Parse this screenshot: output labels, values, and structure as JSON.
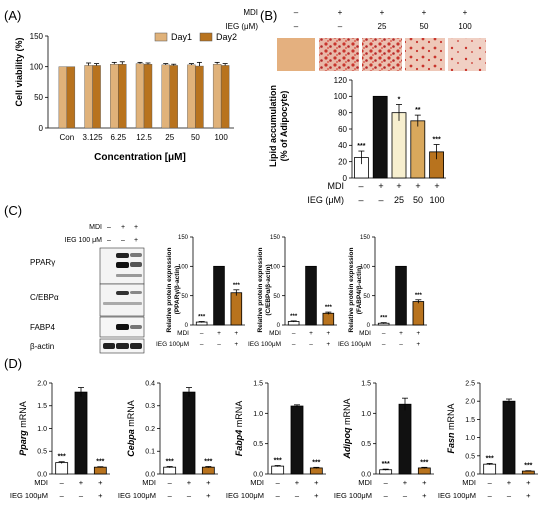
{
  "panel_labels": [
    "(A)",
    "(B)",
    "(C)",
    "(D)"
  ],
  "colors": {
    "day1": "#e0b27a",
    "day2": "#b8731e",
    "black": "#111111",
    "white": "#ffffff",
    "ieg25": "#f7efcf",
    "ieg50": "#d9a85c",
    "ieg100": "#b8731e",
    "stain": "#c8352d",
    "stain_bg": "#e4b07f"
  },
  "panelA": {
    "label": "(A)",
    "ylabel": "Cell viability (%)",
    "xlabel": "Concentration [μM]",
    "legend": [
      "Day1",
      "Day2"
    ]
  },
  "panelB": {
    "label": "(B)",
    "header_rows": [
      {
        "label": "MDI",
        "values": [
          "–",
          "+",
          "+",
          "+",
          "+"
        ]
      },
      {
        "label": "IEG (μM)",
        "values": [
          "–",
          "–",
          "25",
          "50",
          "100"
        ]
      }
    ],
    "ylabel_line1": "Lipid accumulation",
    "ylabel_line2": "(% of Adipocyte)",
    "footer_rows": [
      {
        "label": "MDI",
        "values": [
          "–",
          "+",
          "+",
          "+",
          "+"
        ]
      },
      {
        "label": "IEG (μM)",
        "values": [
          "–",
          "–",
          "25",
          "50",
          "100"
        ]
      }
    ]
  },
  "panelC": {
    "label": "(C)",
    "blot_header_rows": [
      {
        "label": "MDI",
        "values": [
          "–",
          "+",
          "+"
        ]
      },
      {
        "label": "IEG 100 μM",
        "values": [
          "–",
          "–",
          "+"
        ]
      }
    ],
    "blot_rows": [
      "PPARγ",
      "C/EBPα",
      "FABP4",
      "β-actin"
    ],
    "ylabel_line1": "Relative protein expression",
    "subplots": [
      {
        "ylabel_line2": "(PPARγ/β-actin)"
      },
      {
        "ylabel_line2": "(C/EBPα/β-actin)"
      },
      {
        "ylabel_line2": "(FABP4/β-actin)"
      }
    ],
    "footer_rows": [
      {
        "label": "MDI",
        "values": [
          "–",
          "+",
          "+"
        ]
      },
      {
        "label": "IEG 100μM",
        "values": [
          "–",
          "–",
          "+"
        ]
      }
    ]
  },
  "panelD": {
    "label": "(D)",
    "footer_rows": [
      {
        "label": "MDI",
        "values": [
          "–",
          "+",
          "+"
        ]
      },
      {
        "label": "IEG 100μM",
        "values": [
          "–",
          "–",
          "+"
        ]
      }
    ]
  },
  "chart_data": [
    {
      "panel": "A",
      "type": "bar",
      "categories": [
        "Con",
        "3.125",
        "6.25",
        "12.5",
        "25",
        "50",
        "100"
      ],
      "series": [
        {
          "name": "Day1",
          "values": [
            100,
            102,
            104,
            105,
            103,
            103,
            104
          ],
          "errors": [
            0,
            4,
            3,
            2,
            2,
            2,
            3
          ]
        },
        {
          "name": "Day2",
          "values": [
            100,
            102,
            104,
            104,
            102,
            101,
            102
          ],
          "errors": [
            0,
            3,
            4,
            2,
            2,
            6,
            3
          ]
        }
      ],
      "ylim": [
        0,
        150
      ],
      "yticks": [
        0,
        50,
        100,
        150
      ],
      "xlabel": "Concentration [μM]",
      "ylabel": "Cell viability (%)",
      "legend": "top-right"
    },
    {
      "panel": "B",
      "type": "bar",
      "categories": [
        "–/–",
        "+/–",
        "+/25",
        "+/50",
        "+/100"
      ],
      "values": [
        25,
        100,
        80,
        70,
        32
      ],
      "errors": [
        8,
        0,
        10,
        7,
        9
      ],
      "significance": [
        "***",
        "",
        "*",
        "**",
        "***"
      ],
      "ylim": [
        0,
        120
      ],
      "yticks": [
        0,
        20,
        40,
        60,
        80,
        100,
        120
      ],
      "ylabel": "Lipid accumulation (% of Adipocyte)"
    },
    {
      "panel": "C1",
      "type": "bar",
      "categories": [
        "–/–",
        "+/–",
        "+/+"
      ],
      "values": [
        5,
        100,
        55
      ],
      "errors": [
        1,
        0,
        5
      ],
      "significance": [
        "***",
        "",
        "***"
      ],
      "ylim": [
        0,
        150
      ],
      "yticks": [
        0,
        50,
        100,
        150
      ],
      "ylabel": "Relative protein expression (PPARγ/β-actin)"
    },
    {
      "panel": "C2",
      "type": "bar",
      "categories": [
        "–/–",
        "+/–",
        "+/+"
      ],
      "values": [
        6,
        100,
        20
      ],
      "errors": [
        1,
        0,
        2
      ],
      "significance": [
        "***",
        "",
        "***"
      ],
      "ylim": [
        0,
        150
      ],
      "yticks": [
        0,
        50,
        100,
        150
      ],
      "ylabel": "Relative protein expression (C/EBPα/β-actin)"
    },
    {
      "panel": "C3",
      "type": "bar",
      "categories": [
        "–/–",
        "+/–",
        "+/+"
      ],
      "values": [
        3,
        100,
        40
      ],
      "errors": [
        1,
        0,
        3
      ],
      "significance": [
        "***",
        "",
        "***"
      ],
      "ylim": [
        0,
        150
      ],
      "yticks": [
        0,
        50,
        100,
        150
      ],
      "ylabel": "Relative protein expression (FABP4/β-actin)"
    },
    {
      "panel": "D1",
      "type": "bar",
      "categories": [
        "–/–",
        "+/–",
        "+/+"
      ],
      "values": [
        0.25,
        1.8,
        0.15
      ],
      "errors": [
        0.02,
        0.1,
        0.01
      ],
      "significance": [
        "***",
        "",
        "***"
      ],
      "ylim": [
        0,
        2.0
      ],
      "yticks": [
        0.0,
        0.5,
        1.0,
        1.5,
        2.0
      ],
      "ytick_labels": [
        "0.0",
        "0.5",
        "1.0",
        "1.5",
        "2.0"
      ],
      "ylabel": "Pparg mRNA"
    },
    {
      "panel": "D2",
      "type": "bar",
      "categories": [
        "–/–",
        "+/–",
        "+/+"
      ],
      "values": [
        0.03,
        0.36,
        0.03
      ],
      "errors": [
        0.003,
        0.02,
        0.003
      ],
      "significance": [
        "***",
        "",
        "***"
      ],
      "ylim": [
        0,
        0.4
      ],
      "yticks": [
        0.0,
        0.1,
        0.2,
        0.3,
        0.4
      ],
      "ytick_labels": [
        "0.0",
        "0.1",
        "0.2",
        "0.3",
        "0.4"
      ],
      "ylabel": "Cebpa mRNA"
    },
    {
      "panel": "D3",
      "type": "bar",
      "categories": [
        "–/–",
        "+/–",
        "+/+"
      ],
      "values": [
        0.13,
        1.12,
        0.1
      ],
      "errors": [
        0.01,
        0.02,
        0.01
      ],
      "significance": [
        "***",
        "",
        "***"
      ],
      "ylim": [
        0,
        1.5
      ],
      "yticks": [
        0.0,
        0.5,
        1.0,
        1.5
      ],
      "ytick_labels": [
        "0.0",
        "0.5",
        "1.0",
        "1.5"
      ],
      "ylabel": "Fabp4 mRNA"
    },
    {
      "panel": "D4",
      "type": "bar",
      "categories": [
        "–/–",
        "+/–",
        "+/+"
      ],
      "values": [
        0.07,
        1.15,
        0.1
      ],
      "errors": [
        0.01,
        0.1,
        0.01
      ],
      "significance": [
        "***",
        "",
        "***"
      ],
      "ylim": [
        0,
        1.5
      ],
      "yticks": [
        0.0,
        0.5,
        1.0,
        1.5
      ],
      "ytick_labels": [
        "0.0",
        "0.5",
        "1.0",
        "1.5"
      ],
      "ylabel": "Adipoq mRNA"
    },
    {
      "panel": "D5",
      "type": "bar",
      "categories": [
        "–/–",
        "+/–",
        "+/+"
      ],
      "values": [
        0.27,
        2.0,
        0.08
      ],
      "errors": [
        0.02,
        0.06,
        0.01
      ],
      "significance": [
        "***",
        "",
        "***"
      ],
      "ylim": [
        0,
        2.5
      ],
      "yticks": [
        0.0,
        0.5,
        1.0,
        1.5,
        2.0,
        2.5
      ],
      "ytick_labels": [
        "0.0",
        "0.5",
        "1.0",
        "1.5",
        "2.0",
        "2.5"
      ],
      "ylabel": "Fasn mRNA"
    }
  ]
}
